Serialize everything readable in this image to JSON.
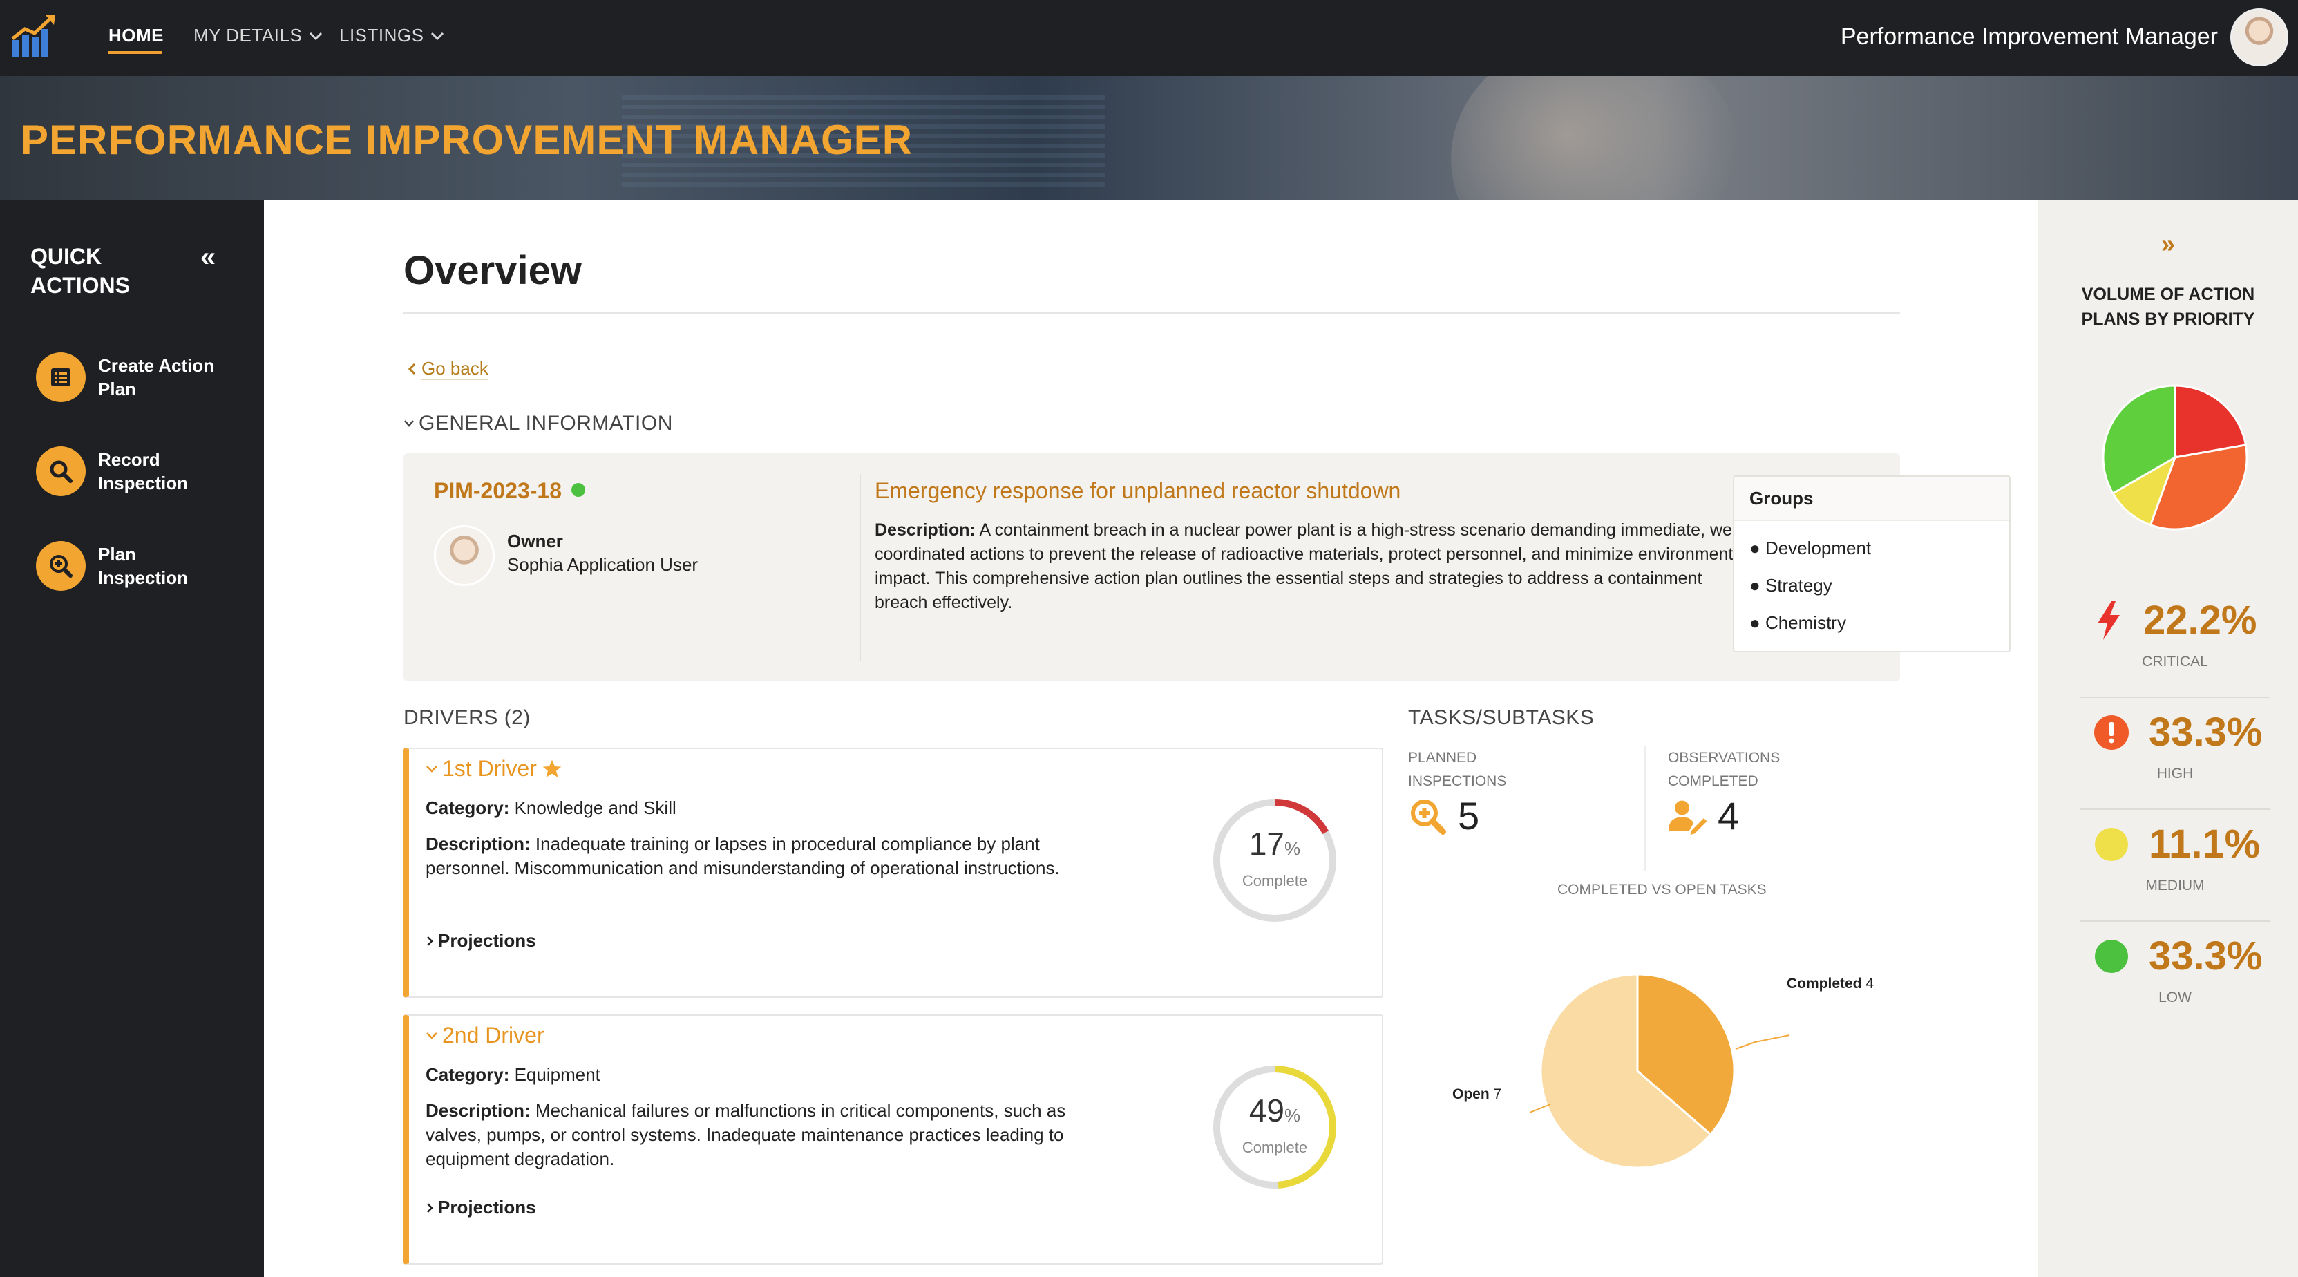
{
  "nav": {
    "home": "HOME",
    "my_details": "MY DETAILS",
    "listings": "LISTINGS",
    "user_title": "Performance Improvement Manager"
  },
  "banner": {
    "title": "PERFORMANCE IMPROVEMENT MANAGER"
  },
  "sidebar": {
    "title": "QUICK ACTIONS",
    "collapse_icon": "double-chevron-left-icon",
    "items": [
      {
        "label": "Create Action Plan",
        "icon": "list-icon"
      },
      {
        "label": "Record Inspection",
        "icon": "search-icon"
      },
      {
        "label": "Plan Inspection",
        "icon": "zoom-in-icon"
      }
    ]
  },
  "main": {
    "title": "Overview",
    "go_back": "Go back",
    "general_info_header": "GENERAL INFORMATION",
    "plan": {
      "id": "PIM-2023-18",
      "status_color": "#4cc13f",
      "owner_label": "Owner",
      "owner_name": "Sophia Application User",
      "title": "Emergency response for unplanned reactor shutdown",
      "description_label": "Description:",
      "description": "A containment breach in a nuclear power plant is a high-stress scenario demanding immediate, well-coordinated actions to prevent the release of radioactive materials, protect personnel, and minimize environmental impact. This comprehensive action plan outlines the essential steps and strategies to address a containment breach effectively."
    },
    "groups": {
      "header": "Groups",
      "items": [
        "Development",
        "Strategy",
        "Chemistry"
      ]
    },
    "drivers": {
      "header": "DRIVERS (2)",
      "items": [
        {
          "name": "1st Driver",
          "starred": true,
          "category_label": "Category:",
          "category": "Knowledge and Skill",
          "description_label": "Description:",
          "description": "Inadequate training or lapses in procedural compliance by plant personnel. Miscommunication and misunderstanding of operational instructions.",
          "projections": "Projections",
          "complete_value": "17",
          "complete_percent": 17,
          "complete_label": "Complete",
          "gauge_color": "#d0383a"
        },
        {
          "name": "2nd Driver",
          "starred": false,
          "category_label": "Category:",
          "category": "Equipment",
          "description_label": "Description:",
          "description": "Mechanical failures or malfunctions in critical components, such as valves, pumps, or control systems. Inadequate maintenance practices leading to equipment degradation.",
          "projections": "Projections",
          "complete_value": "49",
          "complete_percent": 49,
          "complete_label": "Complete",
          "gauge_color": "#e8d83a"
        }
      ]
    },
    "tasks": {
      "header": "TASKS/SUBTASKS",
      "planned_label": "PLANNED INSPECTIONS",
      "planned_value": "5",
      "observations_label": "OBSERVATIONS COMPLETED",
      "observations_value": "4",
      "pie_caption": "COMPLETED VS OPEN TASKS",
      "completed_label": "Completed",
      "completed_value": "4",
      "open_label": "Open",
      "open_value": "7"
    }
  },
  "chart_data": [
    {
      "type": "pie",
      "title": "COMPLETED VS OPEN TASKS",
      "categories": [
        "Completed",
        "Open"
      ],
      "values": [
        4,
        7
      ],
      "colors": [
        "#f2a93b",
        "#f9dba3"
      ]
    },
    {
      "type": "pie",
      "title": "VOLUME OF ACTION PLANS BY PRIORITY",
      "categories": [
        "CRITICAL",
        "HIGH",
        "MEDIUM",
        "LOW"
      ],
      "values": [
        22.2,
        33.3,
        11.1,
        33.3
      ],
      "colors": [
        "#e8322c",
        "#f26430",
        "#efe04a",
        "#5fcf3e"
      ]
    }
  ],
  "right_panel": {
    "collapse_icon": "double-chevron-right-icon",
    "title": "VOLUME OF ACTION PLANS BY PRIORITY",
    "priorities": [
      {
        "value": "22.2%",
        "label": "CRITICAL",
        "icon": "lightning-icon",
        "color": "#e8322c"
      },
      {
        "value": "33.3%",
        "label": "HIGH",
        "icon": "exclamation-icon",
        "color": "#f05a28"
      },
      {
        "value": "11.1%",
        "label": "MEDIUM",
        "icon": "circle-icon",
        "color": "#efe04a"
      },
      {
        "value": "33.3%",
        "label": "LOW",
        "icon": "circle-icon",
        "color": "#4cc13f"
      }
    ]
  }
}
